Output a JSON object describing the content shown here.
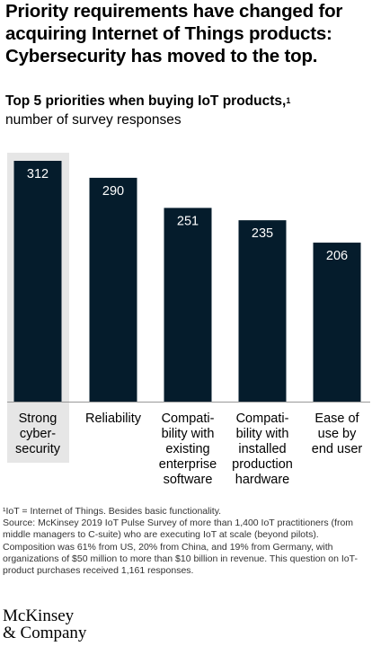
{
  "headline": "Priority requirements have changed for acquiring Internet of Things products: Cybersecurity has moved to the top.",
  "subtitle": "Top 5 priorities when buying IoT products,",
  "subtitle_footnote_marker": "1",
  "unit_label": "number of survey responses",
  "colors": {
    "bar": "#051c2c",
    "highlight_bg": "#e6e6e6",
    "bar_label": "#ffffff",
    "axis": "#999999"
  },
  "chart_data": {
    "type": "bar",
    "title": "Top 5 priorities when buying IoT products",
    "ylabel": "number of survey responses",
    "categories": [
      "Strong cyber-security",
      "Reliability",
      "Compati-bility with existing enterprise software",
      "Compati-bility with installed production hardware",
      "Ease of use by end user"
    ],
    "category_lines": [
      [
        "Strong",
        "cyber-",
        "security"
      ],
      [
        "Reliability"
      ],
      [
        "Compati-",
        "bility with",
        "existing",
        "enterprise",
        "software"
      ],
      [
        "Compati-",
        "bility with",
        "installed",
        "production",
        "hardware"
      ],
      [
        "Ease of",
        "use by",
        "end user"
      ]
    ],
    "values": [
      312,
      290,
      251,
      235,
      206
    ],
    "highlighted_category": "Strong cyber-security",
    "ylim": [
      0,
      312
    ],
    "grid": false,
    "legend": "none"
  },
  "footnotes": {
    "note": "¹IoT = Internet of Things. Besides basic functionality.",
    "source": "Source: McKinsey 2019 IoT Pulse Survey of more than 1,400 IoT practitioners (from middle managers to C-suite) who are executing IoT at scale (beyond pilots). Composition was 61% from US, 20% from China, and 19% from Germany, with organizations of $50 million to more than $10 billion in revenue. This question on IoT-product purchases received 1,161 responses."
  },
  "logo": {
    "line1": "McKinsey",
    "line2": "& Company"
  }
}
